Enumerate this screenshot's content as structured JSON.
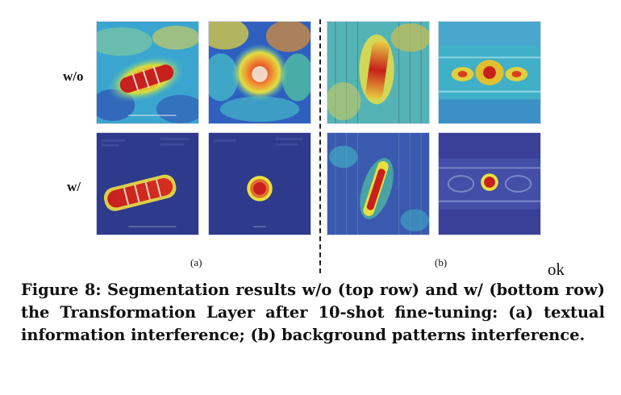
{
  "figure": {
    "row_labels": {
      "top": "w/o",
      "bottom": "w/"
    },
    "subfigure_labels": {
      "a": "(a)",
      "b": "(b)"
    },
    "panels": [
      {
        "id": "a1-top",
        "description_icon": "heatmap-textual-stripe-wo"
      },
      {
        "id": "a2-top",
        "description_icon": "heatmap-textual-spot-wo"
      },
      {
        "id": "b1-top",
        "description_icon": "heatmap-background-stripe-wo"
      },
      {
        "id": "b2-top",
        "description_icon": "heatmap-background-slots-wo"
      },
      {
        "id": "a1-bottom",
        "description_icon": "heatmap-textual-stripe-w"
      },
      {
        "id": "a2-bottom",
        "description_icon": "heatmap-textual-spot-w"
      },
      {
        "id": "b1-bottom",
        "description_icon": "heatmap-background-stripe-w"
      },
      {
        "id": "b2-bottom",
        "description_icon": "heatmap-background-slots-w"
      }
    ],
    "colors": {
      "low": "#2b2f8f",
      "mid": "#33b5c9",
      "high": "#f6e33a",
      "peak": "#c8201c"
    }
  },
  "annotation": "ok",
  "caption": "Figure 8: Segmentation results w/o (top row) and w/ (bottom row) the Transformation Layer after 10-shot fine-tuning: (a) textual information interference; (b) background patterns interference."
}
